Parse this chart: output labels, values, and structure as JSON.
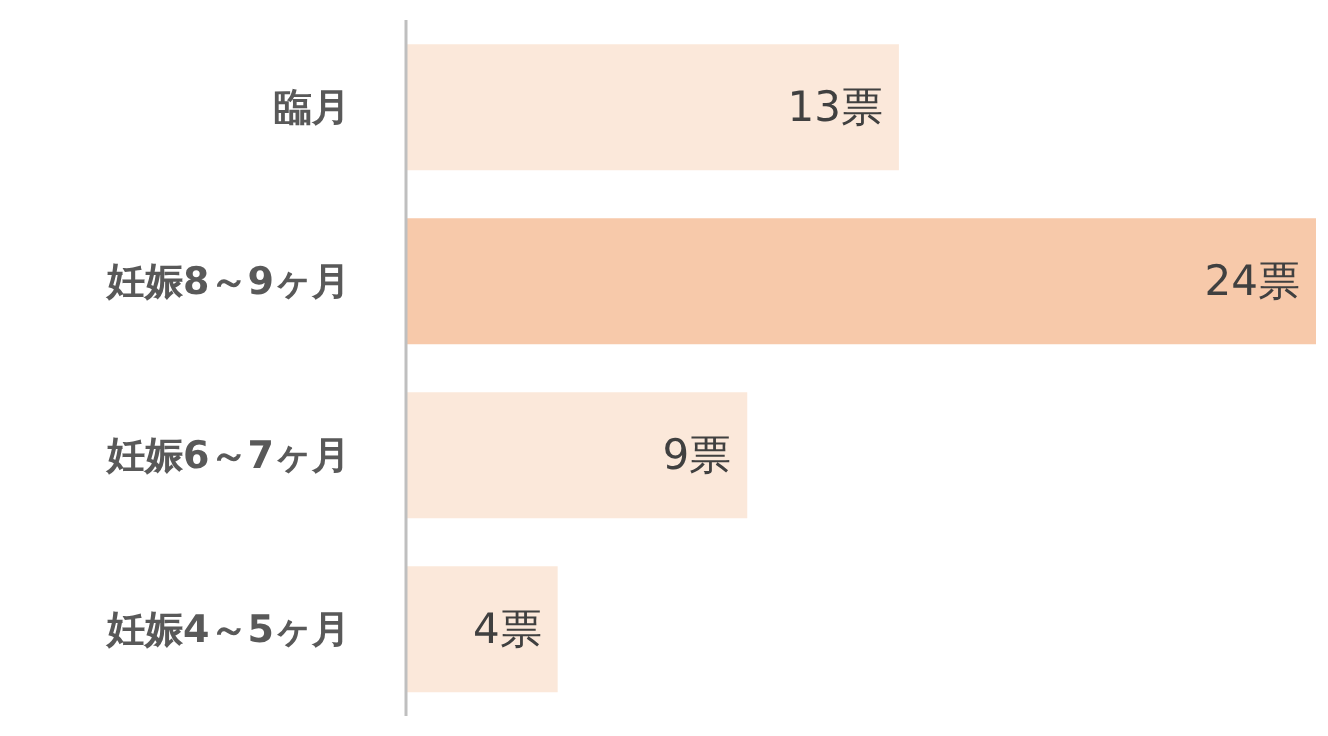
{
  "chart_data": {
    "type": "bar",
    "orientation": "horizontal",
    "categories": [
      "臨月",
      "妊娠8～9ヶ月",
      "妊娠6～7ヶ月",
      "妊娠4～5ヶ月"
    ],
    "values": [
      13,
      24,
      9,
      4
    ],
    "value_labels": [
      "13票",
      "24票",
      "9票",
      "4票"
    ],
    "colors": [
      "#fbe8da",
      "#f7c9aa",
      "#fbe8da",
      "#fbe8da"
    ],
    "grid": false,
    "legend": false
  }
}
